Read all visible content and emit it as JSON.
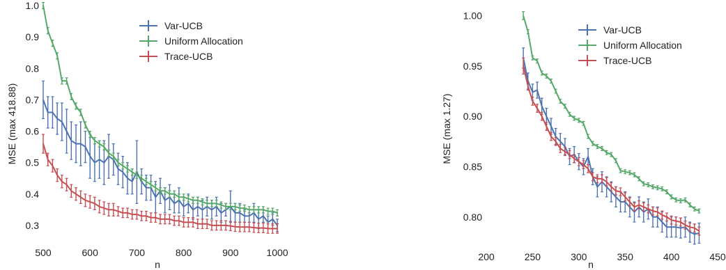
{
  "chart_data": [
    {
      "type": "line",
      "xlabel": "n",
      "ylabel": "MSE (max 418.88)",
      "xlim": [
        500,
        1000
      ],
      "ylim": [
        0.26,
        1.0
      ],
      "xticks": [
        500,
        600,
        700,
        800,
        900,
        1000
      ],
      "yticks": [
        0.3,
        0.4,
        0.5,
        0.6,
        0.7,
        0.8,
        0.9,
        1.0
      ],
      "ytick_labels": [
        "0.3",
        "0.4",
        "0.5",
        "0.6",
        "0.7",
        "0.8",
        "0.9",
        "1.0"
      ],
      "grid": false,
      "legend_position": "top-center",
      "series": [
        {
          "name": "Var-UCB",
          "color": "#4c72b0",
          "x": [
            500,
            510,
            520,
            530,
            540,
            550,
            560,
            570,
            580,
            590,
            600,
            610,
            620,
            630,
            640,
            650,
            660,
            670,
            680,
            690,
            700,
            710,
            720,
            730,
            740,
            750,
            760,
            770,
            780,
            790,
            800,
            810,
            820,
            830,
            840,
            850,
            860,
            870,
            880,
            890,
            900,
            910,
            920,
            930,
            940,
            950,
            960,
            970,
            980,
            990,
            1000
          ],
          "y": [
            0.7,
            0.66,
            0.66,
            0.64,
            0.63,
            0.6,
            0.57,
            0.56,
            0.56,
            0.55,
            0.52,
            0.5,
            0.51,
            0.5,
            0.52,
            0.51,
            0.48,
            0.47,
            0.45,
            0.44,
            0.47,
            0.44,
            0.42,
            0.42,
            0.39,
            0.41,
            0.38,
            0.39,
            0.37,
            0.38,
            0.36,
            0.37,
            0.35,
            0.36,
            0.35,
            0.36,
            0.35,
            0.36,
            0.34,
            0.35,
            0.36,
            0.34,
            0.34,
            0.33,
            0.33,
            0.34,
            0.32,
            0.33,
            0.31,
            0.32,
            0.3
          ],
          "error": [
            0.06,
            0.05,
            0.05,
            0.05,
            0.06,
            0.07,
            0.06,
            0.06,
            0.07,
            0.05,
            0.07,
            0.06,
            0.06,
            0.07,
            0.07,
            0.05,
            0.05,
            0.05,
            0.05,
            0.04,
            0.1,
            0.04,
            0.04,
            0.04,
            0.05,
            0.04,
            0.04,
            0.04,
            0.03,
            0.04,
            0.03,
            0.03,
            0.03,
            0.03,
            0.03,
            0.03,
            0.03,
            0.03,
            0.03,
            0.02,
            0.05,
            0.03,
            0.03,
            0.02,
            0.02,
            0.03,
            0.03,
            0.02,
            0.02,
            0.02,
            0.02
          ]
        },
        {
          "name": "Uniform Allocation",
          "color": "#55a868",
          "x": [
            500,
            510,
            520,
            530,
            540,
            550,
            560,
            570,
            580,
            590,
            600,
            610,
            620,
            630,
            640,
            650,
            660,
            670,
            680,
            690,
            700,
            710,
            720,
            730,
            740,
            750,
            760,
            770,
            780,
            790,
            800,
            810,
            820,
            830,
            840,
            850,
            860,
            870,
            880,
            890,
            900,
            910,
            920,
            930,
            940,
            950,
            960,
            970,
            980,
            990,
            1000
          ],
          "y": [
            1.0,
            0.92,
            0.88,
            0.84,
            0.76,
            0.76,
            0.71,
            0.68,
            0.66,
            0.62,
            0.59,
            0.57,
            0.56,
            0.55,
            0.53,
            0.52,
            0.5,
            0.49,
            0.48,
            0.47,
            0.46,
            0.45,
            0.44,
            0.43,
            0.42,
            0.41,
            0.41,
            0.4,
            0.4,
            0.39,
            0.39,
            0.385,
            0.38,
            0.38,
            0.375,
            0.37,
            0.37,
            0.37,
            0.365,
            0.36,
            0.36,
            0.36,
            0.355,
            0.355,
            0.35,
            0.35,
            0.35,
            0.35,
            0.345,
            0.345,
            0.34
          ],
          "error": [
            0.01,
            0.01,
            0.01,
            0.01,
            0.01,
            0.01,
            0.01,
            0.01,
            0.01,
            0.01,
            0.01,
            0.01,
            0.01,
            0.01,
            0.01,
            0.01,
            0.01,
            0.01,
            0.01,
            0.01,
            0.01,
            0.01,
            0.01,
            0.01,
            0.01,
            0.01,
            0.01,
            0.01,
            0.01,
            0.01,
            0.01,
            0.01,
            0.01,
            0.01,
            0.01,
            0.01,
            0.01,
            0.01,
            0.01,
            0.01,
            0.01,
            0.01,
            0.01,
            0.01,
            0.01,
            0.01,
            0.01,
            0.01,
            0.01,
            0.01,
            0.01
          ]
        },
        {
          "name": "Trace-UCB",
          "color": "#c44e52",
          "x": [
            500,
            510,
            520,
            530,
            540,
            550,
            560,
            570,
            580,
            590,
            600,
            610,
            620,
            630,
            640,
            650,
            660,
            670,
            680,
            690,
            700,
            710,
            720,
            730,
            740,
            750,
            760,
            770,
            780,
            790,
            800,
            810,
            820,
            830,
            840,
            850,
            860,
            870,
            880,
            890,
            900,
            910,
            920,
            930,
            940,
            950,
            960,
            970,
            980,
            990,
            1000
          ],
          "y": [
            0.56,
            0.51,
            0.49,
            0.46,
            0.44,
            0.43,
            0.41,
            0.4,
            0.39,
            0.38,
            0.375,
            0.37,
            0.36,
            0.355,
            0.35,
            0.35,
            0.345,
            0.34,
            0.34,
            0.335,
            0.335,
            0.33,
            0.33,
            0.325,
            0.325,
            0.32,
            0.32,
            0.32,
            0.315,
            0.315,
            0.31,
            0.31,
            0.31,
            0.305,
            0.305,
            0.305,
            0.3,
            0.3,
            0.3,
            0.3,
            0.298,
            0.296,
            0.295,
            0.295,
            0.295,
            0.293,
            0.292,
            0.292,
            0.29,
            0.29,
            0.29
          ],
          "error": [
            0.03,
            0.02,
            0.02,
            0.02,
            0.02,
            0.02,
            0.02,
            0.02,
            0.02,
            0.02,
            0.02,
            0.02,
            0.02,
            0.02,
            0.02,
            0.02,
            0.015,
            0.015,
            0.015,
            0.015,
            0.015,
            0.015,
            0.015,
            0.015,
            0.015,
            0.015,
            0.015,
            0.015,
            0.015,
            0.015,
            0.015,
            0.015,
            0.015,
            0.015,
            0.015,
            0.015,
            0.015,
            0.015,
            0.015,
            0.015,
            0.015,
            0.015,
            0.015,
            0.015,
            0.015,
            0.015,
            0.015,
            0.015,
            0.015,
            0.015,
            0.015
          ]
        }
      ]
    },
    {
      "type": "line",
      "xlabel": "n",
      "ylabel": "MSE (max 1.27)",
      "xlim": [
        200,
        450
      ],
      "ylim": [
        0.775,
        1.01
      ],
      "xticks": [
        200,
        250,
        300,
        350,
        400,
        450
      ],
      "yticks": [
        0.8,
        0.85,
        0.9,
        0.95,
        1.0
      ],
      "ytick_labels": [
        "0.80",
        "0.85",
        "0.90",
        "0.95",
        "1.00"
      ],
      "grid": false,
      "legend_position": "top-center",
      "series": [
        {
          "name": "Var-UCB",
          "color": "#4c72b0",
          "x": [
            240,
            245,
            250,
            255,
            260,
            265,
            270,
            275,
            280,
            285,
            290,
            295,
            300,
            305,
            310,
            315,
            320,
            325,
            330,
            335,
            340,
            345,
            350,
            355,
            360,
            365,
            370,
            375,
            380,
            385,
            390,
            395,
            400,
            405,
            410,
            415,
            420,
            425,
            430
          ],
          "y": [
            0.958,
            0.935,
            0.924,
            0.926,
            0.91,
            0.9,
            0.89,
            0.88,
            0.875,
            0.87,
            0.86,
            0.862,
            0.855,
            0.85,
            0.86,
            0.84,
            0.83,
            0.835,
            0.83,
            0.825,
            0.82,
            0.815,
            0.815,
            0.81,
            0.805,
            0.81,
            0.805,
            0.808,
            0.8,
            0.8,
            0.795,
            0.79,
            0.79,
            0.79,
            0.789,
            0.79,
            0.785,
            0.783,
            0.784
          ],
          "error": [
            0.01,
            0.008,
            0.008,
            0.008,
            0.008,
            0.008,
            0.008,
            0.008,
            0.008,
            0.008,
            0.008,
            0.008,
            0.008,
            0.008,
            0.008,
            0.008,
            0.01,
            0.01,
            0.01,
            0.01,
            0.01,
            0.01,
            0.01,
            0.01,
            0.01,
            0.01,
            0.01,
            0.01,
            0.01,
            0.01,
            0.01,
            0.01,
            0.01,
            0.01,
            0.01,
            0.01,
            0.01,
            0.01,
            0.01
          ]
        },
        {
          "name": "Uniform Allocation",
          "color": "#55a868",
          "x": [
            240,
            245,
            250,
            255,
            260,
            265,
            270,
            275,
            280,
            285,
            290,
            295,
            300,
            305,
            310,
            315,
            320,
            325,
            330,
            335,
            340,
            345,
            350,
            355,
            360,
            365,
            370,
            375,
            380,
            385,
            390,
            395,
            400,
            405,
            410,
            415,
            420,
            425,
            430
          ],
          "y": [
            1.0,
            0.984,
            0.958,
            0.955,
            0.943,
            0.94,
            0.935,
            0.925,
            0.915,
            0.91,
            0.902,
            0.898,
            0.896,
            0.893,
            0.88,
            0.873,
            0.87,
            0.868,
            0.864,
            0.862,
            0.856,
            0.846,
            0.845,
            0.844,
            0.842,
            0.838,
            0.833,
            0.832,
            0.83,
            0.829,
            0.828,
            0.825,
            0.82,
            0.817,
            0.816,
            0.817,
            0.812,
            0.808,
            0.806
          ],
          "error": [
            0.004,
            0.002,
            0.002,
            0.002,
            0.002,
            0.002,
            0.002,
            0.002,
            0.002,
            0.002,
            0.002,
            0.002,
            0.002,
            0.002,
            0.002,
            0.002,
            0.002,
            0.002,
            0.002,
            0.002,
            0.002,
            0.002,
            0.002,
            0.002,
            0.002,
            0.002,
            0.002,
            0.002,
            0.002,
            0.002,
            0.002,
            0.002,
            0.002,
            0.002,
            0.002,
            0.002,
            0.002,
            0.002,
            0.002
          ]
        },
        {
          "name": "Trace-UCB",
          "color": "#c44e52",
          "x": [
            240,
            245,
            250,
            255,
            260,
            265,
            270,
            275,
            280,
            285,
            290,
            295,
            300,
            305,
            310,
            315,
            320,
            325,
            330,
            335,
            340,
            345,
            350,
            355,
            360,
            365,
            370,
            375,
            380,
            385,
            390,
            395,
            400,
            405,
            410,
            415,
            420,
            425,
            430
          ],
          "y": [
            0.95,
            0.93,
            0.915,
            0.908,
            0.9,
            0.89,
            0.88,
            0.875,
            0.868,
            0.865,
            0.862,
            0.858,
            0.855,
            0.852,
            0.848,
            0.84,
            0.838,
            0.838,
            0.835,
            0.83,
            0.826,
            0.825,
            0.82,
            0.815,
            0.81,
            0.812,
            0.81,
            0.808,
            0.806,
            0.805,
            0.802,
            0.8,
            0.797,
            0.796,
            0.795,
            0.792,
            0.79,
            0.789,
            0.786
          ],
          "error": [
            0.008,
            0.004,
            0.004,
            0.004,
            0.004,
            0.004,
            0.004,
            0.004,
            0.004,
            0.004,
            0.004,
            0.004,
            0.004,
            0.004,
            0.004,
            0.004,
            0.004,
            0.004,
            0.004,
            0.004,
            0.004,
            0.004,
            0.004,
            0.004,
            0.004,
            0.004,
            0.004,
            0.004,
            0.004,
            0.004,
            0.004,
            0.004,
            0.004,
            0.004,
            0.004,
            0.004,
            0.004,
            0.004,
            0.004
          ]
        }
      ]
    }
  ]
}
